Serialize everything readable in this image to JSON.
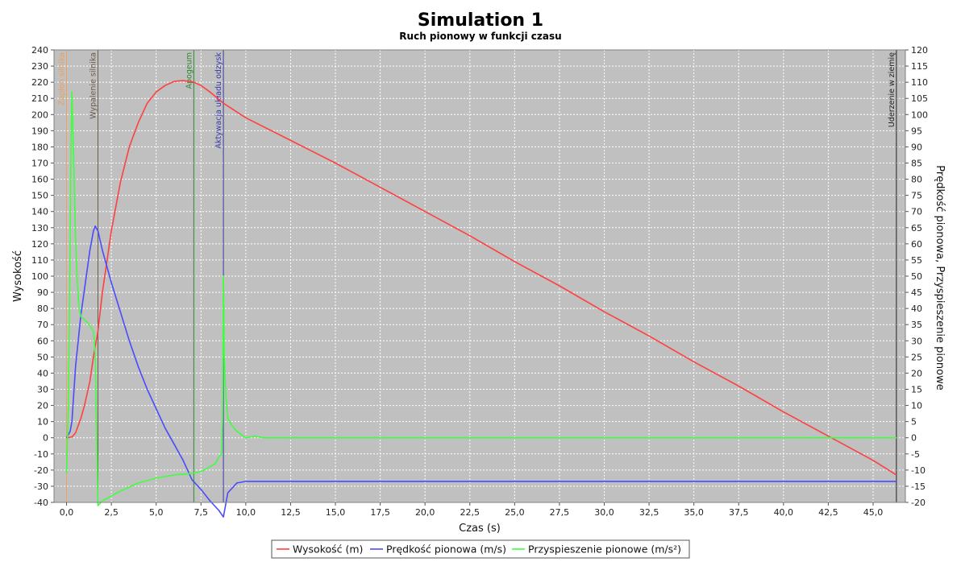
{
  "chart_data": {
    "type": "line",
    "title": "Simulation 1",
    "subtitle": "Ruch pionowy w funkcji czasu",
    "xlabel": "Czas (s)",
    "ylabel_left": "Wysokość",
    "ylabel_right": "Prędkość pionowa, Przyspieszenie pionowe",
    "xlim": [
      -0.7,
      46.8
    ],
    "ylim_left": [
      -40,
      240
    ],
    "ylim_right": [
      -20,
      120
    ],
    "x_ticks": [
      "0,0",
      "2,5",
      "5,0",
      "7,5",
      "10,0",
      "12,5",
      "15,0",
      "17,5",
      "20,0",
      "22,5",
      "25,0",
      "27,5",
      "30,0",
      "32,5",
      "35,0",
      "37,5",
      "40,0",
      "42,5",
      "45,0"
    ],
    "x_tick_values": [
      0,
      2.5,
      5,
      7.5,
      10,
      12.5,
      15,
      17.5,
      20,
      22.5,
      25,
      27.5,
      30,
      32.5,
      35,
      37.5,
      40,
      42.5,
      45
    ],
    "y_left_ticks": [
      "-40",
      "-30",
      "-20",
      "-10",
      "0",
      "10",
      "20",
      "30",
      "40",
      "50",
      "60",
      "70",
      "80",
      "90",
      "100",
      "110",
      "120",
      "130",
      "140",
      "150",
      "160",
      "170",
      "180",
      "190",
      "200",
      "210",
      "220",
      "230",
      "240"
    ],
    "y_left_tick_values": [
      -40,
      -30,
      -20,
      -10,
      0,
      10,
      20,
      30,
      40,
      50,
      60,
      70,
      80,
      90,
      100,
      110,
      120,
      130,
      140,
      150,
      160,
      170,
      180,
      190,
      200,
      210,
      220,
      230,
      240
    ],
    "y_right_ticks": [
      "-20",
      "-15",
      "-10",
      "-5",
      "0",
      "5",
      "10",
      "15",
      "20",
      "25",
      "30",
      "35",
      "40",
      "45",
      "50",
      "55",
      "60",
      "65",
      "70",
      "75",
      "80",
      "85",
      "90",
      "95",
      "100",
      "105",
      "110",
      "115",
      "120"
    ],
    "y_right_tick_values": [
      -20,
      -15,
      -10,
      -5,
      0,
      5,
      10,
      15,
      20,
      25,
      30,
      35,
      40,
      45,
      50,
      55,
      60,
      65,
      70,
      75,
      80,
      85,
      90,
      95,
      100,
      105,
      110,
      115,
      120
    ],
    "grid": true,
    "legend_position": "bottom",
    "events": [
      {
        "label": "Zapłon silnika",
        "x": 0.0,
        "color": "#e8a060"
      },
      {
        "label": "Wypalenie silnika",
        "x": 1.75,
        "color": "#6b5a4a"
      },
      {
        "label": "Apogeum",
        "x": 7.1,
        "color": "#2f8a2f"
      },
      {
        "label": "Aktywacja układu odzysk",
        "x": 8.75,
        "color": "#3a3aa8"
      },
      {
        "label": "Uderzenie w ziemię",
        "x": 46.3,
        "color": "#202020"
      }
    ],
    "series": [
      {
        "name": "Wysokość (m)",
        "color": "#ff4040",
        "axis": "left",
        "x": [
          0,
          0.3,
          0.5,
          0.8,
          1.0,
          1.3,
          1.5,
          1.75,
          2.0,
          2.5,
          3.0,
          3.5,
          4.0,
          4.5,
          5.0,
          5.5,
          6.0,
          6.5,
          7.1,
          7.5,
          8.0,
          8.75,
          10.0,
          12.5,
          15.0,
          17.5,
          20.0,
          22.5,
          25.0,
          27.5,
          30.0,
          32.5,
          35.0,
          37.5,
          40.0,
          42.5,
          45.0,
          46.3
        ],
        "values": [
          0,
          0.5,
          3,
          12,
          20,
          35,
          50,
          66,
          90,
          128,
          158,
          180,
          195,
          207,
          214,
          218,
          220.5,
          221,
          220,
          218,
          214,
          207,
          198,
          184,
          170,
          155,
          140,
          125,
          109,
          94,
          78,
          63,
          47,
          32,
          16,
          1,
          -14,
          -23
        ]
      },
      {
        "name": "Prędkość pionowa (m/s)",
        "color": "#4a4aff",
        "axis": "right",
        "x": [
          0,
          0.2,
          0.3,
          0.5,
          0.8,
          1.0,
          1.3,
          1.5,
          1.6,
          1.75,
          2.0,
          2.5,
          3.0,
          3.5,
          4.0,
          4.5,
          5.0,
          5.5,
          6.0,
          6.5,
          7.0,
          7.5,
          8.0,
          8.5,
          8.75,
          9.0,
          9.5,
          10.0,
          12.5,
          15.0,
          20.0,
          25.0,
          30.0,
          35.0,
          40.0,
          45.0,
          46.3
        ],
        "values": [
          0,
          2,
          5,
          22,
          38,
          46,
          58,
          64,
          65.5,
          64,
          58,
          48,
          39,
          30,
          22,
          15,
          9,
          3,
          -2,
          -7,
          -13,
          -16,
          -19.5,
          -22.5,
          -24.5,
          -17,
          -14,
          -13.5,
          -13.5,
          -13.5,
          -13.5,
          -13.5,
          -13.5,
          -13.5,
          -13.5,
          -13.5,
          -13.5
        ]
      },
      {
        "name": "Przyspieszenie pionowe (m/s²)",
        "color": "#40ff40",
        "axis": "right",
        "x": [
          0,
          0.1,
          0.2,
          0.25,
          0.3,
          0.4,
          0.5,
          0.6,
          0.7,
          0.8,
          1.0,
          1.2,
          1.5,
          1.6,
          1.75,
          2.0,
          3.0,
          4.0,
          5.0,
          6.0,
          7.0,
          7.5,
          8.0,
          8.3,
          8.5,
          8.65,
          8.7,
          8.75,
          8.8,
          8.9,
          9.0,
          9.2,
          9.5,
          10.0,
          10.5,
          11.0,
          15.0,
          20.0,
          30.0,
          40.0,
          46.3
        ],
        "values": [
          -11,
          10,
          60,
          90,
          107,
          85,
          62,
          48,
          40,
          37.5,
          36.5,
          35.5,
          33,
          26,
          -21,
          -19.5,
          -16.5,
          -14,
          -12.5,
          -11.5,
          -11,
          -10.5,
          -9,
          -8,
          -6,
          -5,
          5,
          50,
          25,
          12,
          6,
          4,
          2,
          0,
          0.5,
          0,
          0,
          0,
          0,
          0,
          0
        ]
      }
    ]
  }
}
